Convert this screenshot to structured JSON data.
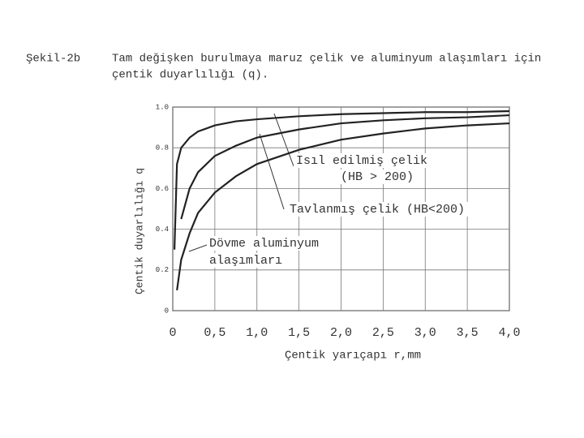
{
  "chart_data": {
    "type": "line",
    "figure_label": "Şekil-2b",
    "title": [
      "Tam değişken burulmaya maruz çelik ve aluminyum alaşımları için",
      "çentik duyarlılığı (q)."
    ],
    "x_label": "Çentik yarıçapı r,mm",
    "y_label": "Çentik duyarlılığı q",
    "x": [
      0.02,
      0.05,
      0.1,
      0.2,
      0.3,
      0.5,
      0.75,
      1,
      1.5,
      2,
      2.5,
      3,
      3.5,
      4
    ],
    "series": [
      {
        "name": "Isıl edilmiş çelik (HB > 200)",
        "color": "#222",
        "values": [
          0.3,
          0.72,
          0.8,
          0.85,
          0.88,
          0.91,
          0.93,
          0.94,
          0.955,
          0.965,
          0.97,
          0.975,
          0.975,
          0.98
        ]
      },
      {
        "name": "Tavlanmış çelik (HB<200)",
        "color": "#222",
        "values": [
          null,
          null,
          0.45,
          0.6,
          0.68,
          0.76,
          0.81,
          0.85,
          0.89,
          0.92,
          0.935,
          0.945,
          0.95,
          0.96
        ]
      },
      {
        "name": "Dövme aluminyum alaşımları",
        "color": "#222",
        "values": [
          null,
          0.1,
          0.25,
          0.38,
          0.48,
          0.58,
          0.66,
          0.72,
          0.79,
          0.84,
          0.87,
          0.895,
          0.91,
          0.92
        ]
      }
    ],
    "annotations": [
      "Isıl edilmiş çelik",
      "(HB > 200)",
      "Tavlanmış çelik (HB<200)",
      "Dövme aluminyum",
      "alaşımları"
    ],
    "xlim": [
      0,
      4
    ],
    "ylim": [
      0,
      1
    ],
    "xticks": [
      0,
      {
        "value": 0.5,
        "label": "0,5"
      },
      {
        "value": 1,
        "label": "1,0"
      },
      {
        "value": 1.5,
        "label": "1,5"
      },
      {
        "value": 2,
        "label": "2,0"
      },
      {
        "value": 2.5,
        "label": "2,5"
      },
      {
        "value": 3,
        "label": "3,0"
      },
      {
        "value": 3.5,
        "label": "3,5"
      },
      {
        "value": 4,
        "label": "4,0"
      }
    ],
    "yticks": [
      0,
      0.2,
      0.4,
      0.6,
      0.8,
      {
        "value": 1,
        "label": "1.0"
      }
    ],
    "grid": true
  }
}
